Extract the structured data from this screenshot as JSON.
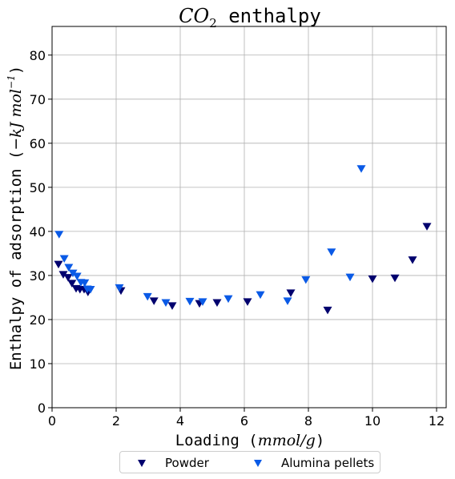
{
  "chart_data": {
    "type": "scatter",
    "title": {
      "formula_base": "CO",
      "formula_subscript": "2",
      "text": " enthalpy"
    },
    "xlabel": {
      "text": "Loading (",
      "unit": "mmol/g",
      "close": ")"
    },
    "ylabel": {
      "text": "Enthalpy of adsorption (",
      "unit_prefix": "−kJ mol",
      "unit_exponent": "−1",
      "close": ")"
    },
    "xlim": [
      0,
      12.3
    ],
    "ylim": [
      0,
      86.5
    ],
    "xticks": [
      0,
      2,
      4,
      6,
      8,
      10,
      12
    ],
    "yticks": [
      0,
      10,
      20,
      30,
      40,
      50,
      60,
      70,
      80
    ],
    "grid": true,
    "legend_position": "bottom-center, below plot",
    "marker": "triangle-down",
    "series": [
      {
        "name": "Powder",
        "color": "#00006e",
        "x": [
          0.2,
          0.35,
          0.5,
          0.62,
          0.75,
          0.87,
          1.0,
          1.12,
          2.15,
          3.18,
          3.75,
          4.6,
          5.15,
          6.1,
          7.45,
          8.6,
          10.0,
          10.7,
          11.25,
          11.7
        ],
        "y": [
          32.5,
          30.2,
          29.5,
          28.2,
          27.0,
          26.8,
          26.8,
          26.2,
          26.5,
          24.2,
          23.1,
          23.6,
          23.8,
          24.0,
          26.0,
          22.1,
          29.2,
          29.4,
          33.5,
          41.1
        ]
      },
      {
        "name": "Alumina pellets",
        "color": "#0a5ae6",
        "x": [
          0.22,
          0.38,
          0.52,
          0.65,
          0.78,
          0.9,
          1.02,
          1.1,
          1.2,
          2.1,
          2.98,
          3.55,
          4.3,
          4.7,
          5.5,
          6.5,
          7.35,
          7.92,
          8.72,
          9.3,
          9.65
        ],
        "y": [
          39.3,
          33.8,
          31.8,
          30.5,
          29.8,
          28.4,
          28.3,
          26.9,
          26.8,
          27.2,
          25.2,
          23.8,
          24.1,
          24.0,
          24.7,
          25.6,
          24.2,
          29.0,
          35.3,
          29.6,
          54.2
        ]
      }
    ]
  }
}
